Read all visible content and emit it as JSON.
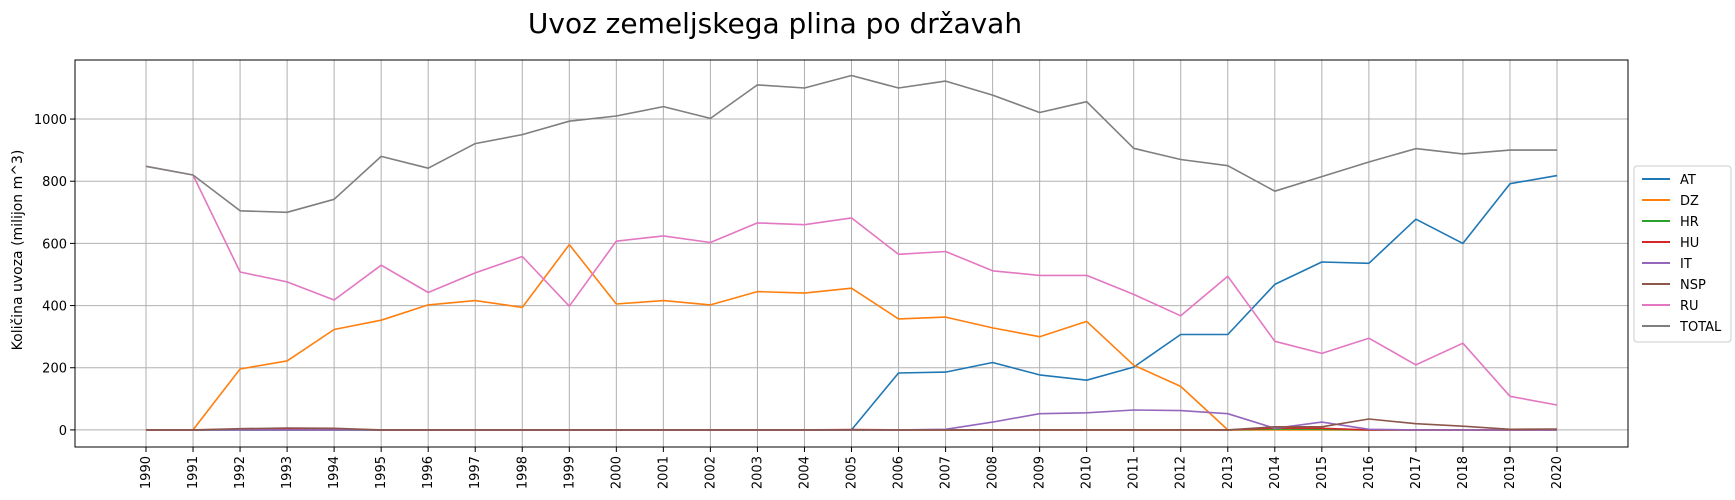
{
  "chart_data": {
    "type": "line",
    "title": "Uvoz zemeljskega plina po državah",
    "xlabel": "",
    "ylabel": "Količina uvoza (milijon m^3)",
    "x": [
      "1990",
      "1991",
      "1992",
      "1993",
      "1994",
      "1995",
      "1996",
      "1997",
      "1998",
      "1999",
      "2000",
      "2001",
      "2002",
      "2003",
      "2004",
      "2005",
      "2006",
      "2007",
      "2008",
      "2009",
      "2010",
      "2011",
      "2012",
      "2013",
      "2014",
      "2015",
      "2016",
      "2017",
      "2018",
      "2019",
      "2020"
    ],
    "yticks": [
      0,
      200,
      400,
      600,
      800,
      1000
    ],
    "ylim": [
      -55,
      1190
    ],
    "grid": true,
    "legend_position": "right",
    "series": [
      {
        "name": "AT",
        "color": "#1f77b4",
        "values": [
          0,
          0,
          0,
          0,
          0,
          0,
          0,
          0,
          0,
          0,
          0,
          0,
          0,
          0,
          0,
          0,
          183,
          186,
          217,
          177,
          160,
          202,
          307,
          307,
          468,
          540,
          536,
          678,
          600,
          792,
          818
        ]
      },
      {
        "name": "DZ",
        "color": "#ff7f0e",
        "values": [
          0,
          0,
          196,
          222,
          323,
          353,
          402,
          416,
          394,
          596,
          405,
          416,
          402,
          445,
          440,
          456,
          357,
          363,
          328,
          300,
          349,
          208,
          140,
          0,
          0,
          0,
          0,
          0,
          0,
          0,
          0
        ]
      },
      {
        "name": "HR",
        "color": "#2ca02c",
        "values": [
          0,
          0,
          0,
          0,
          0,
          0,
          0,
          0,
          0,
          0,
          0,
          0,
          0,
          0,
          0,
          0,
          0,
          0,
          0,
          0,
          0,
          0,
          0,
          0,
          3,
          2,
          0,
          0,
          0,
          0,
          0
        ]
      },
      {
        "name": "HU",
        "color": "#d62728",
        "values": [
          0,
          0,
          2,
          3,
          2,
          0,
          0,
          0,
          0,
          0,
          0,
          0,
          0,
          0,
          0,
          1,
          0,
          0,
          0,
          0,
          0,
          0,
          0,
          0,
          6,
          5,
          0,
          0,
          0,
          0,
          0
        ]
      },
      {
        "name": "IT",
        "color": "#9467bd",
        "values": [
          0,
          0,
          0,
          0,
          0,
          0,
          0,
          0,
          0,
          0,
          0,
          0,
          0,
          0,
          0,
          0,
          0,
          2,
          25,
          52,
          55,
          64,
          62,
          52,
          5,
          25,
          2,
          0,
          0,
          0,
          0
        ]
      },
      {
        "name": "NSP",
        "color": "#8c564b",
        "values": [
          0,
          0,
          4,
          6,
          5,
          0,
          0,
          0,
          0,
          0,
          0,
          0,
          0,
          0,
          0,
          0,
          0,
          0,
          0,
          0,
          0,
          0,
          0,
          0,
          10,
          10,
          35,
          20,
          12,
          2,
          3
        ]
      },
      {
        "name": "RU",
        "color": "#e377c2",
        "values": [
          848,
          820,
          508,
          476,
          418,
          530,
          442,
          505,
          558,
          398,
          607,
          624,
          603,
          666,
          660,
          682,
          565,
          574,
          512,
          497,
          497,
          436,
          367,
          494,
          285,
          246,
          295,
          209,
          279,
          108,
          80
        ]
      },
      {
        "name": "TOTAL",
        "color": "#7f7f7f",
        "values": [
          848,
          820,
          705,
          700,
          742,
          880,
          842,
          921,
          950,
          993,
          1010,
          1040,
          1002,
          1110,
          1100,
          1140,
          1100,
          1122,
          1077,
          1021,
          1056,
          906,
          870,
          850,
          768,
          815,
          862,
          905,
          888,
          900,
          900
        ]
      }
    ]
  }
}
